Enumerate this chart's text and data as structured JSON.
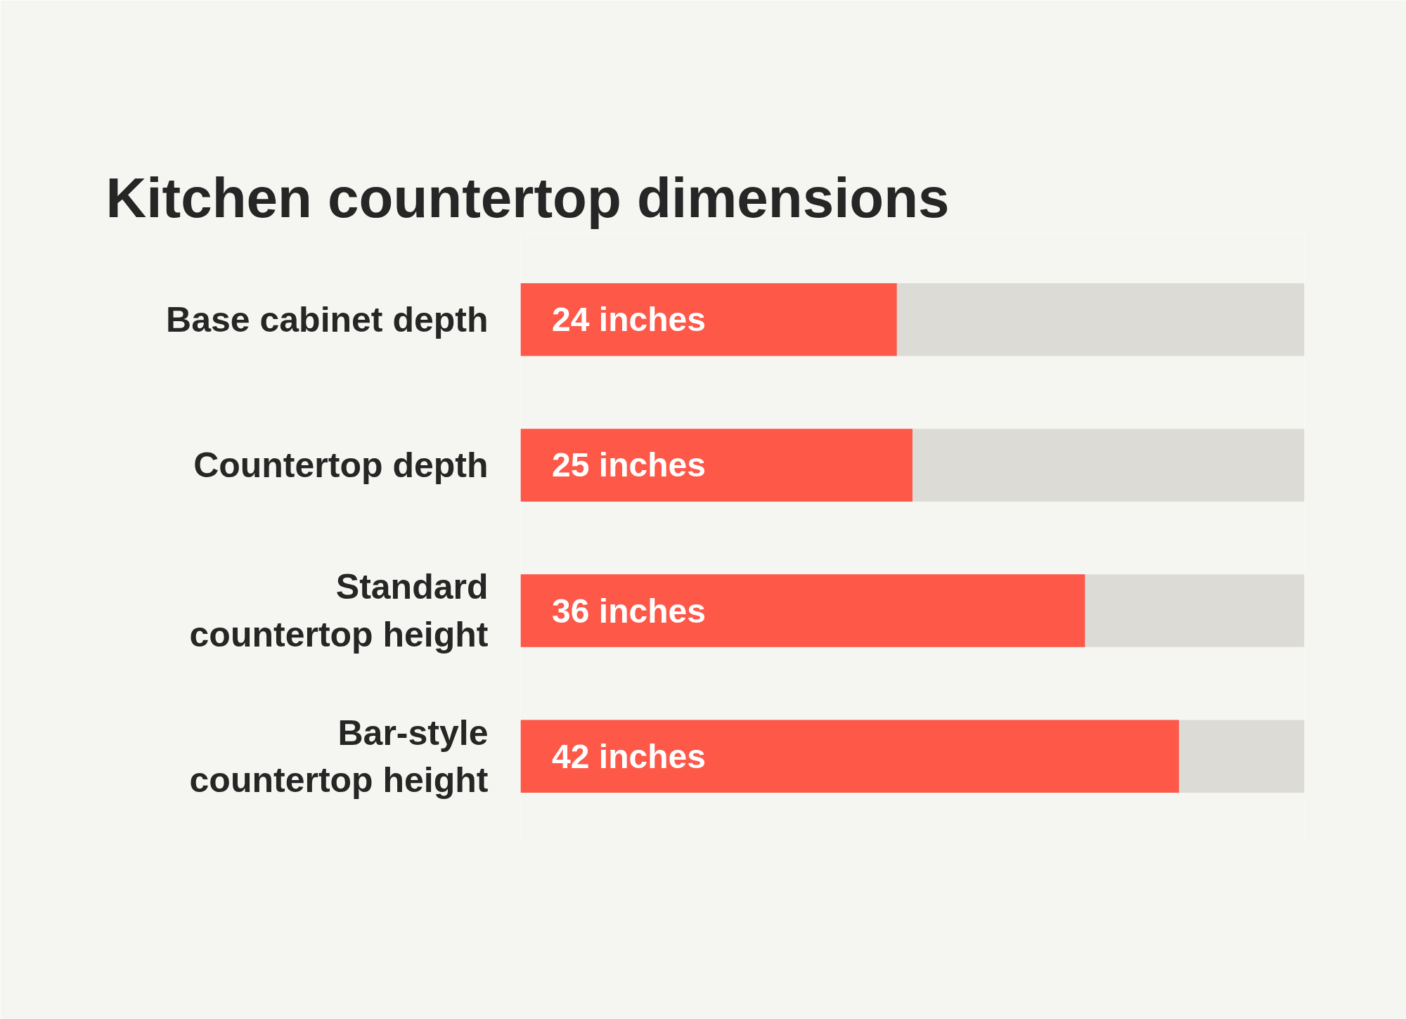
{
  "chart_data": {
    "type": "bar",
    "orientation": "horizontal",
    "title": "Kitchen countertop dimensions",
    "categories": [
      "Base cabinet depth",
      "Countertop depth",
      "Standard countertop height",
      "Bar-style countertop height"
    ],
    "values": [
      24,
      25,
      36,
      42
    ],
    "value_labels": [
      "24 inches",
      "25 inches",
      "36 inches",
      "42 inches"
    ],
    "color": "#fe5849",
    "xlim": [
      0,
      50
    ],
    "grid": false,
    "tick_labels": "y"
  }
}
